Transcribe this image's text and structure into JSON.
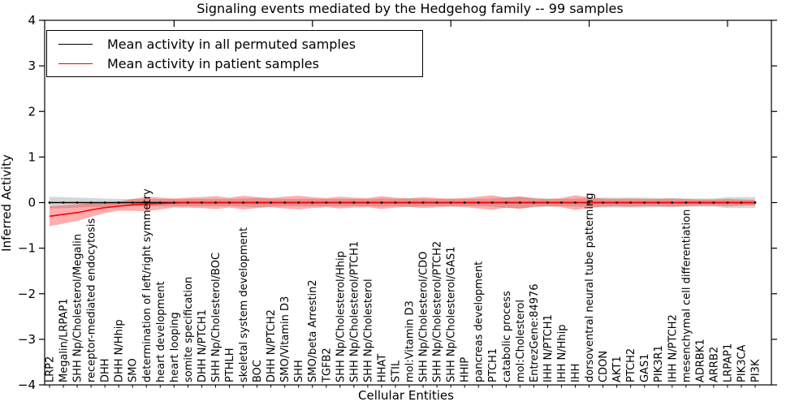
{
  "figure": {
    "background": "#ffffff",
    "frame_color": "#000000"
  },
  "chart_data": {
    "type": "line",
    "title": "Signaling events mediated by the Hedgehog family -- 99 samples",
    "xlabel": "Cellular Entities",
    "ylabel": "Inferred Activity",
    "ylim": [
      -4,
      4
    ],
    "yticks": [
      4,
      3,
      2,
      1,
      0,
      -1,
      -2,
      -3,
      -4
    ],
    "grid": "off",
    "legend_position": "upper-left",
    "legend": [
      {
        "label": "Mean activity in all permuted samples",
        "color": "#000000"
      },
      {
        "label": "Mean activity in patient samples",
        "color": "#ff0000"
      }
    ],
    "categories": [
      "LRP2",
      "Megalin/LRPAP1",
      "SHH Np/Cholesterol/Megalin",
      "receptor-mediated endocytosis",
      "DHH",
      "DHH N/Hhip",
      "SMO",
      "determination of left/right symmetry",
      "heart development",
      "heart looping",
      "somite specification",
      "DHH N/PTCH1",
      "SHH Np/Cholesterol/BOC",
      "PTHLH",
      "skeletal system development",
      "BOC",
      "DHH N/PTCH2",
      "SMO/Vitamin D3",
      "SHH",
      "SMO/beta Arrestin2",
      "TGFB2",
      "SHH Np/Cholesterol/Hhip",
      "SHH Np/Cholesterol/PTCH1",
      "SHH Np/Cholesterol",
      "HHAT",
      "STIL",
      "mol:Vitamin D3",
      "SHH Np/Cholesterol/CDO",
      "SHH Np/Cholesterol/PTCH2",
      "SHH Np/Cholesterol/GAS1",
      "HHIP",
      "pancreas development",
      "PTCH1",
      "catabolic process",
      "mol:Cholesterol",
      "EntrezGene:84976",
      "IHH N/PTCH1",
      "IHH N/Hhip",
      "IHH",
      "dorsoventral neural tube patterning",
      "CDON",
      "AKT1",
      "PTCH2",
      "GAS1",
      "PIK3R1",
      "IHH N/PTCH2",
      "mesenchymal cell differentiation",
      "ADRBK1",
      "ARRB2",
      "LRPAP1",
      "PIK3CA",
      "PI3K"
    ],
    "series": [
      {
        "name": "Mean activity in all permuted samples",
        "color": "#000000",
        "band_color": "rgba(0,0,0,0.16)",
        "marker": "dot",
        "values": [
          0,
          0,
          0,
          0,
          0,
          0,
          0,
          0,
          0,
          0,
          0,
          0,
          0,
          0,
          0,
          0,
          0,
          0,
          0,
          0,
          0,
          0,
          0,
          0,
          0,
          0,
          0,
          0,
          0,
          0,
          0,
          0,
          0,
          0,
          0,
          0,
          0,
          0,
          0,
          0,
          0,
          0,
          0,
          0,
          0,
          0,
          0,
          0,
          0,
          0,
          0,
          0
        ],
        "band_half_width": [
          0.13,
          0.12,
          0.11,
          0.1,
          0.09,
          0.08,
          0.08,
          0.08,
          0.08,
          0.08,
          0.08,
          0.08,
          0.08,
          0.08,
          0.09,
          0.1,
          0.09,
          0.08,
          0.08,
          0.08,
          0.08,
          0.08,
          0.08,
          0.08,
          0.09,
          0.08,
          0.1,
          0.08,
          0.08,
          0.08,
          0.08,
          0.08,
          0.09,
          0.12,
          0.12,
          0.11,
          0.09,
          0.08,
          0.09,
          0.1,
          0.11,
          0.11,
          0.11,
          0.11,
          0.1,
          0.1,
          0.09,
          0.09,
          0.09,
          0.12,
          0.12,
          0.12
        ]
      },
      {
        "name": "Mean activity in patient samples",
        "color": "#ff0000",
        "band_color": "rgba(255,0,0,0.32)",
        "marker": "none",
        "values": [
          -0.3,
          -0.26,
          -0.22,
          -0.16,
          -0.11,
          -0.08,
          -0.05,
          -0.03,
          -0.02,
          -0.01,
          0,
          0,
          0,
          0,
          0,
          0,
          0,
          0,
          0,
          0,
          0,
          0,
          0,
          0,
          0,
          0,
          0,
          0,
          0,
          0,
          0,
          0,
          0,
          0,
          0,
          0,
          0,
          0,
          0,
          0,
          0,
          0,
          0,
          0,
          0,
          0,
          0,
          0,
          0,
          0,
          0,
          0
        ],
        "band_half_width": [
          0.22,
          0.2,
          0.18,
          0.15,
          0.12,
          0.1,
          0.13,
          0.16,
          0.13,
          0.1,
          0.11,
          0.12,
          0.14,
          0.11,
          0.15,
          0.12,
          0.1,
          0.13,
          0.15,
          0.12,
          0.1,
          0.13,
          0.11,
          0.1,
          0.14,
          0.11,
          0.09,
          0.12,
          0.1,
          0.09,
          0.1,
          0.13,
          0.16,
          0.11,
          0.14,
          0.09,
          0.08,
          0.1,
          0.16,
          0.12,
          0.09,
          0.08,
          0.09,
          0.08,
          0.08,
          0.09,
          0.08,
          0.07,
          0.07,
          0.08,
          0.07,
          0.06
        ]
      }
    ]
  }
}
